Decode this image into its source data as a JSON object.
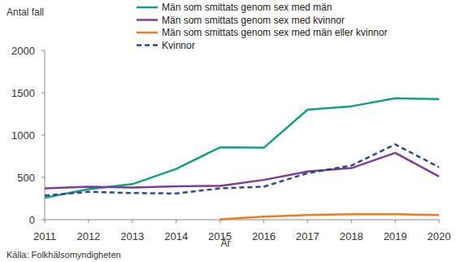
{
  "chart_data": {
    "type": "line",
    "y_label": "Antal fall",
    "x_label": "År",
    "source": "Källa: Folkhälsomyndigheten",
    "x": [
      2011,
      2012,
      2013,
      2014,
      2015,
      2016,
      2017,
      2018,
      2019,
      2020
    ],
    "xlim": [
      2011,
      2020
    ],
    "xticks": [
      2011,
      2012,
      2013,
      2014,
      2015,
      2016,
      2017,
      2018,
      2019,
      2020
    ],
    "ylim": [
      0,
      2000
    ],
    "yticks": [
      0,
      500,
      1000,
      1500,
      2000
    ],
    "grid": false,
    "legend": "top",
    "series": [
      {
        "name": "Män som smittats genom sex med män",
        "color": "#13a085",
        "line_style": "solid",
        "values": [
          260,
          360,
          420,
          600,
          855,
          850,
          1300,
          1340,
          1435,
          1425
        ]
      },
      {
        "name": "Män som smittats genom sex med kvinnor",
        "color": "#7b3f98",
        "line_style": "solid",
        "values": [
          370,
          390,
          380,
          395,
          400,
          470,
          570,
          610,
          790,
          510
        ]
      },
      {
        "name": "Män som smittats genom sex med män eller kvinnor",
        "color": "#f07a24",
        "line_style": "solid",
        "values": [
          null,
          null,
          null,
          null,
          5,
          35,
          55,
          65,
          65,
          55
        ]
      },
      {
        "name": "Kvinnor",
        "color": "#2e4a8f",
        "line_style": "dashed",
        "values": [
          285,
          330,
          315,
          310,
          370,
          390,
          550,
          640,
          890,
          620
        ]
      }
    ]
  }
}
